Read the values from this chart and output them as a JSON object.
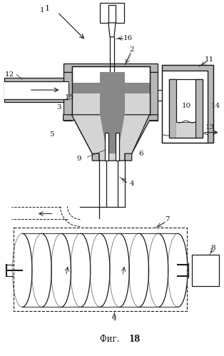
{
  "bg_color": "#ffffff",
  "lc": "#1a1a1a",
  "gray_fill": "#b8b8b8",
  "gray_light": "#d4d4d4",
  "gray_dark": "#888888",
  "title_text": "Фиг. ",
  "title_num": "18",
  "figsize": [
    3.14,
    4.99
  ],
  "dpi": 100
}
